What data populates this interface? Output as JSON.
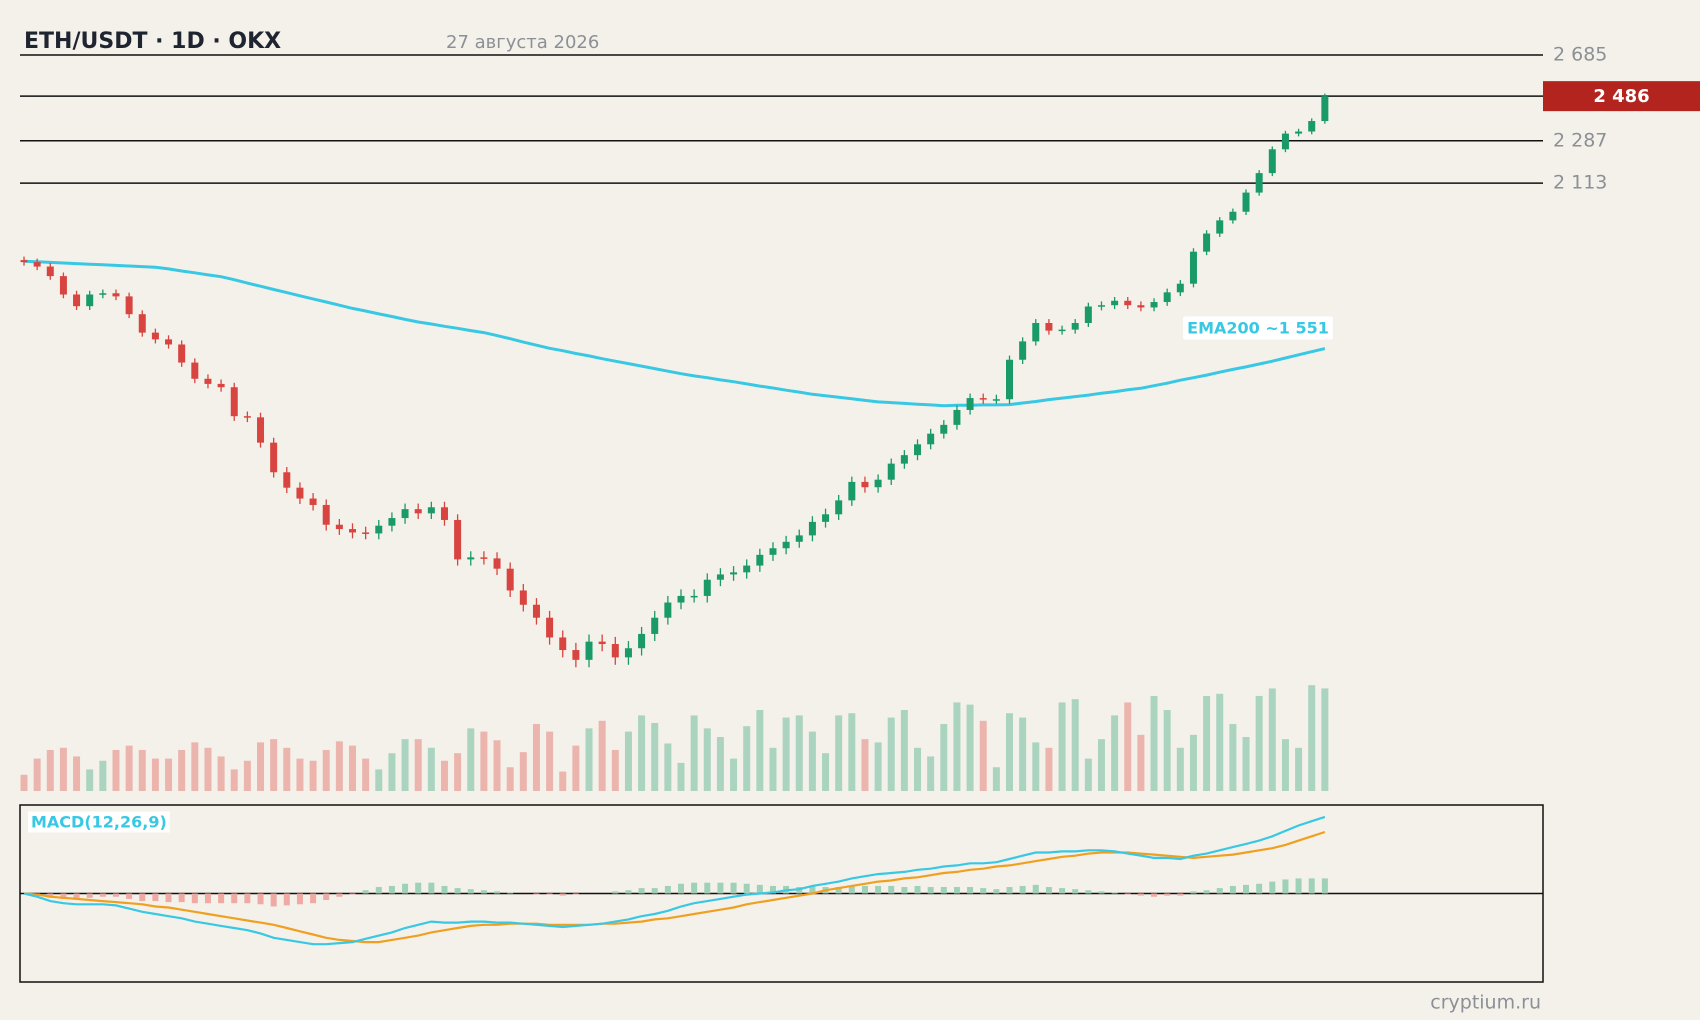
{
  "chart_data": {
    "type": "candlestick",
    "title": "ETH/USDT · 1D · OKX",
    "subtitle": "27 августа 2026",
    "source": "cryptium.ru",
    "log_scale": true,
    "ylim": [
      839,
      2800
    ],
    "yticks": [
      {
        "value": 2685,
        "label": "2 685"
      },
      {
        "value": 2287,
        "label": "2 287"
      },
      {
        "value": 2113,
        "label": "2 113"
      }
    ],
    "last_price": {
      "value": 2486,
      "label": "2 486",
      "color": "#b3241f"
    },
    "up_color": "#1a9a68",
    "down_color": "#d8443f",
    "open": [
      1830,
      1823,
      1808,
      1776,
      1716,
      1679,
      1716,
      1720,
      1710,
      1654,
      1598,
      1578,
      1563,
      1511,
      1466,
      1452,
      1443,
      1367,
      1364,
      1301,
      1231,
      1196,
      1172,
      1158,
      1116,
      1107,
      1100,
      1098,
      1114,
      1130,
      1149,
      1140,
      1153,
      1126,
      1046,
      1050,
      1048,
      1028,
      987,
      961,
      938,
      904,
      883,
      867,
      897,
      893,
      871,
      886,
      910,
      938,
      965,
      977,
      977,
      1007,
      1017,
      1021,
      1034,
      1055,
      1068,
      1081,
      1094,
      1122,
      1138,
      1168,
      1209,
      1197,
      1214,
      1251,
      1271,
      1297,
      1323,
      1345,
      1383,
      1414,
      1411,
      1411,
      1519,
      1572,
      1627,
      1604,
      1607,
      1627,
      1678,
      1682,
      1696,
      1682,
      1675,
      1692,
      1723,
      1751,
      1859,
      1923,
      1971,
      2003,
      2076,
      2153,
      2251,
      2318,
      2327,
      2373
    ],
    "high": [
      1842,
      1835,
      1820,
      1788,
      1728,
      1728,
      1732,
      1732,
      1722,
      1666,
      1610,
      1590,
      1575,
      1523,
      1478,
      1464,
      1455,
      1379,
      1376,
      1313,
      1243,
      1208,
      1184,
      1170,
      1128,
      1119,
      1112,
      1126,
      1142,
      1161,
      1161,
      1165,
      1165,
      1138,
      1062,
      1062,
      1060,
      1040,
      999,
      973,
      950,
      916,
      895,
      909,
      909,
      905,
      898,
      922,
      950,
      977,
      989,
      989,
      1019,
      1029,
      1033,
      1046,
      1067,
      1080,
      1093,
      1106,
      1134,
      1150,
      1180,
      1221,
      1221,
      1226,
      1263,
      1283,
      1309,
      1335,
      1357,
      1395,
      1426,
      1426,
      1423,
      1531,
      1584,
      1639,
      1639,
      1619,
      1639,
      1690,
      1694,
      1708,
      1708,
      1694,
      1704,
      1735,
      1763,
      1871,
      1935,
      1983,
      2015,
      2088,
      2165,
      2263,
      2330,
      2339,
      2385,
      2498
    ],
    "low": [
      1811,
      1796,
      1764,
      1704,
      1667,
      1667,
      1704,
      1698,
      1642,
      1586,
      1566,
      1551,
      1499,
      1454,
      1440,
      1431,
      1355,
      1352,
      1289,
      1219,
      1184,
      1160,
      1146,
      1104,
      1095,
      1088,
      1086,
      1086,
      1102,
      1118,
      1128,
      1128,
      1114,
      1034,
      1034,
      1036,
      1016,
      975,
      949,
      926,
      892,
      871,
      855,
      855,
      881,
      859,
      859,
      874,
      898,
      926,
      953,
      965,
      965,
      995,
      1005,
      1009,
      1022,
      1043,
      1056,
      1069,
      1082,
      1110,
      1126,
      1156,
      1185,
      1185,
      1202,
      1239,
      1259,
      1285,
      1311,
      1333,
      1371,
      1399,
      1399,
      1399,
      1507,
      1560,
      1592,
      1592,
      1595,
      1615,
      1666,
      1670,
      1670,
      1663,
      1663,
      1680,
      1711,
      1739,
      1847,
      1911,
      1959,
      1991,
      2064,
      2141,
      2239,
      2306,
      2315,
      2361
    ],
    "close": [
      1823,
      1808,
      1776,
      1716,
      1679,
      1716,
      1720,
      1710,
      1654,
      1598,
      1578,
      1563,
      1511,
      1466,
      1452,
      1443,
      1367,
      1364,
      1301,
      1231,
      1196,
      1172,
      1158,
      1116,
      1107,
      1100,
      1098,
      1114,
      1130,
      1149,
      1140,
      1153,
      1126,
      1046,
      1050,
      1048,
      1028,
      987,
      961,
      938,
      904,
      883,
      867,
      897,
      893,
      871,
      886,
      910,
      938,
      965,
      977,
      977,
      1007,
      1017,
      1021,
      1034,
      1055,
      1068,
      1081,
      1094,
      1122,
      1138,
      1168,
      1209,
      1197,
      1214,
      1251,
      1271,
      1297,
      1323,
      1345,
      1383,
      1414,
      1411,
      1411,
      1519,
      1572,
      1627,
      1604,
      1607,
      1627,
      1678,
      1682,
      1696,
      1682,
      1675,
      1692,
      1723,
      1751,
      1859,
      1923,
      1971,
      2003,
      2076,
      2153,
      2251,
      2318,
      2327,
      2373,
      2486
    ],
    "volume": {
      "ylim": [
        0,
        100
      ],
      "up_color": "#abd4c0",
      "down_color": "#ebb5ae",
      "values": [
        15,
        30,
        38,
        40,
        32,
        20,
        28,
        38,
        42,
        38,
        30,
        30,
        38,
        45,
        40,
        32,
        20,
        28,
        45,
        48,
        40,
        30,
        28,
        38,
        46,
        42,
        30,
        20,
        35,
        48,
        48,
        40,
        28,
        35,
        58,
        55,
        47,
        22,
        36,
        62,
        55,
        18,
        42,
        58,
        65,
        38,
        55,
        70,
        63,
        44,
        26,
        70,
        58,
        50,
        30,
        60,
        75,
        40,
        68,
        70,
        55,
        35,
        70,
        72,
        48,
        45,
        68,
        75,
        40,
        32,
        62,
        82,
        80,
        65,
        22,
        72,
        68,
        45,
        40,
        82,
        85,
        30,
        48,
        70,
        82,
        52,
        88,
        75,
        40,
        52,
        88,
        90,
        62,
        50,
        88,
        95,
        48,
        40,
        98,
        95
      ]
    },
    "overlay": {
      "label": "EMA200 ~1 551",
      "color": "#38c8e4",
      "values": [
        1826,
        1824,
        1822,
        1820,
        1818,
        1816,
        1814,
        1812,
        1810,
        1808,
        1806,
        1800,
        1793,
        1787,
        1780,
        1774,
        1764,
        1753,
        1743,
        1732,
        1722,
        1712,
        1702,
        1692,
        1682,
        1672,
        1664,
        1655,
        1647,
        1638,
        1630,
        1624,
        1617,
        1611,
        1604,
        1598,
        1589,
        1580,
        1570,
        1561,
        1552,
        1545,
        1537,
        1530,
        1522,
        1515,
        1508,
        1501,
        1494,
        1487,
        1480,
        1474,
        1469,
        1463,
        1458,
        1452,
        1446,
        1441,
        1435,
        1430,
        1424,
        1420,
        1416,
        1412,
        1408,
        1404,
        1402,
        1400,
        1398,
        1396,
        1394,
        1395,
        1395,
        1396,
        1396,
        1397,
        1401,
        1405,
        1410,
        1414,
        1418,
        1422,
        1427,
        1431,
        1436,
        1440,
        1447,
        1454,
        1462,
        1469,
        1476,
        1484,
        1492,
        1499,
        1507,
        1515,
        1524,
        1533,
        1542,
        1551
      ]
    },
    "macd_panel": {
      "title": "MACD(12,26,9)",
      "ylim": [
        -82,
        82
      ],
      "macd": {
        "color": "#38c8e4",
        "values": [
          0,
          -3,
          -7,
          -9,
          -10,
          -10,
          -10,
          -11,
          -14,
          -17,
          -19,
          -21,
          -23,
          -26,
          -28,
          -30,
          -32,
          -34,
          -37,
          -41,
          -43,
          -45,
          -47,
          -47,
          -46,
          -45,
          -42,
          -39,
          -36,
          -32,
          -29,
          -26,
          -27,
          -27,
          -26,
          -26,
          -27,
          -27,
          -28,
          -29,
          -30,
          -31,
          -30,
          -29,
          -28,
          -26,
          -24,
          -21,
          -19,
          -16,
          -12,
          -9,
          -7,
          -5,
          -3,
          -1,
          0,
          1,
          3,
          4,
          7,
          9,
          11,
          14,
          16,
          18,
          19,
          20,
          22,
          23,
          25,
          26,
          28,
          28,
          29,
          32,
          35,
          38,
          38,
          39,
          39,
          40,
          40,
          39,
          37,
          35,
          33,
          33,
          32,
          35,
          37,
          40,
          43,
          46,
          49,
          53,
          58,
          63,
          67,
          71
        ]
      },
      "signal": {
        "color": "#f0a020",
        "values": [
          0,
          -1,
          -3,
          -4,
          -5,
          -6,
          -7,
          -8,
          -9,
          -10,
          -12,
          -13,
          -15,
          -17,
          -19,
          -21,
          -23,
          -25,
          -27,
          -29,
          -32,
          -35,
          -38,
          -41,
          -43,
          -44,
          -45,
          -45,
          -43,
          -41,
          -39,
          -36,
          -34,
          -32,
          -30,
          -29,
          -29,
          -28,
          -28,
          -28,
          -29,
          -29,
          -29,
          -29,
          -28,
          -28,
          -27,
          -26,
          -24,
          -23,
          -21,
          -19,
          -17,
          -15,
          -13,
          -10,
          -8,
          -6,
          -4,
          -2,
          0,
          3,
          5,
          7,
          9,
          11,
          12,
          14,
          15,
          17,
          19,
          20,
          22,
          23,
          25,
          26,
          28,
          30,
          32,
          34,
          35,
          37,
          38,
          38,
          38,
          37,
          36,
          35,
          34,
          33,
          34,
          35,
          36,
          38,
          40,
          42,
          45,
          49,
          53,
          57
        ]
      },
      "histogram": {
        "up_color": "#9fd0b8",
        "down_color": "#efaaa4",
        "values": [
          0,
          -2,
          -4,
          -5,
          -5,
          -4,
          -3,
          -3,
          -5,
          -7,
          -7,
          -8,
          -8,
          -9,
          -9,
          -9,
          -9,
          -9,
          -10,
          -12,
          -11,
          -10,
          -9,
          -6,
          -3,
          -1,
          3,
          6,
          7,
          9,
          10,
          10,
          7,
          5,
          4,
          3,
          2,
          1,
          0,
          -1,
          -1,
          -2,
          -1,
          0,
          0,
          2,
          3,
          5,
          5,
          7,
          9,
          10,
          10,
          10,
          10,
          9,
          8,
          7,
          7,
          6,
          7,
          6,
          6,
          7,
          7,
          7,
          7,
          6,
          7,
          6,
          6,
          6,
          6,
          5,
          4,
          6,
          7,
          8,
          6,
          5,
          4,
          3,
          2,
          1,
          -1,
          -2,
          -3,
          -2,
          -2,
          2,
          3,
          5,
          7,
          8,
          9,
          11,
          13,
          14,
          14,
          14
        ]
      }
    }
  }
}
